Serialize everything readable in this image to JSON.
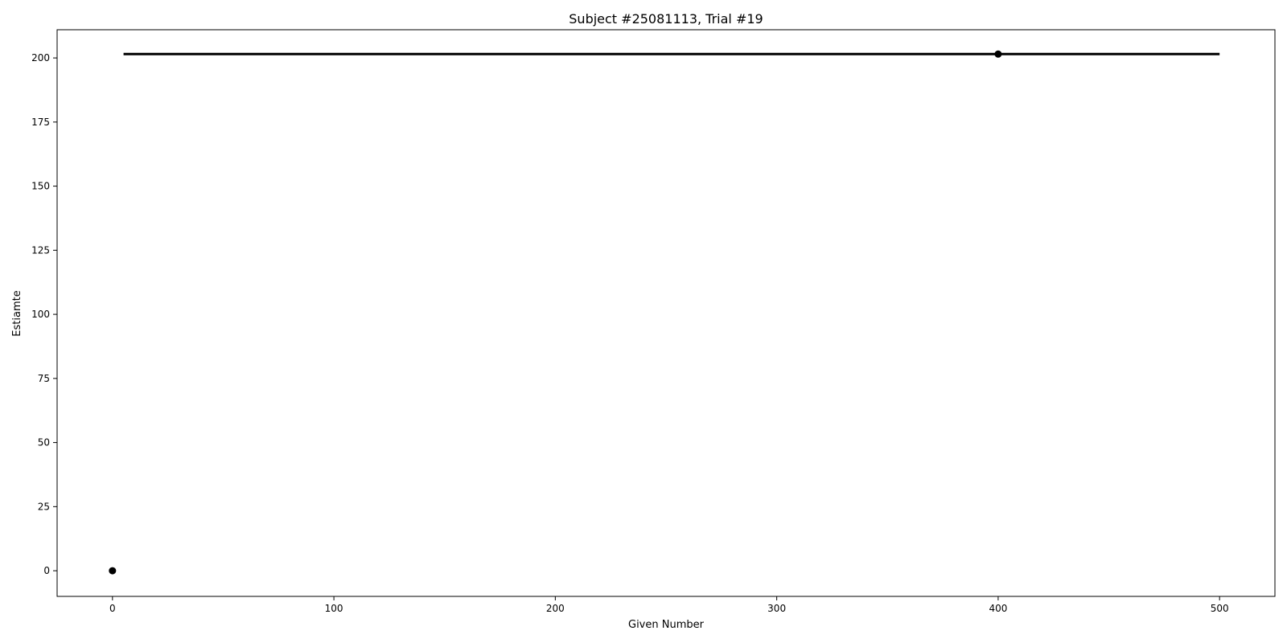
{
  "chart_data": {
    "type": "scatter",
    "title": "Subject #25081113, Trial #19",
    "xlabel": "Given Number",
    "ylabel": "Estiamte",
    "xlim": [
      -25,
      525
    ],
    "ylim": [
      -10,
      211
    ],
    "xticks": [
      0,
      100,
      200,
      300,
      400,
      500
    ],
    "yticks": [
      0,
      25,
      50,
      75,
      100,
      125,
      150,
      175,
      200
    ],
    "grid": false,
    "points": [
      {
        "x": 0,
        "y": 0
      },
      {
        "x": 400,
        "y": 201.5
      }
    ],
    "line": {
      "x": [
        5,
        500
      ],
      "y": [
        201.5,
        201.5
      ]
    },
    "colors": {
      "marks": "#000000",
      "frame": "#000000",
      "background": "#ffffff"
    }
  }
}
